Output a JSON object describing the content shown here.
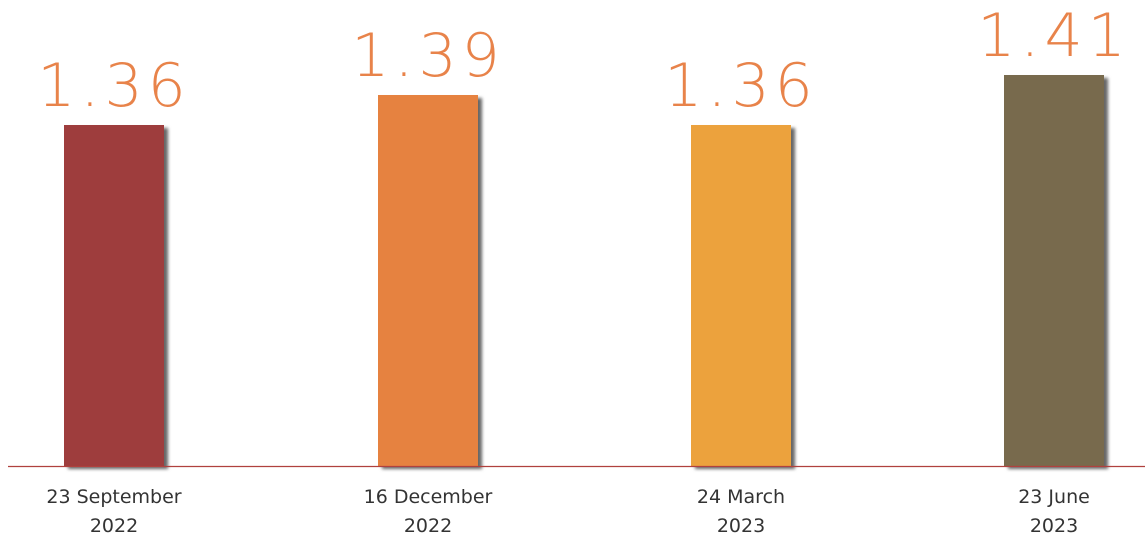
{
  "chart_data": {
    "type": "bar",
    "categories": [
      [
        "23 September",
        "2022"
      ],
      [
        "16 December",
        "2022"
      ],
      [
        "24 March",
        "2023"
      ],
      [
        "23 June",
        "2023"
      ]
    ],
    "values": [
      1.36,
      1.39,
      1.36,
      1.41
    ],
    "data_labels": [
      "1.36",
      "1.39",
      "1.36",
      "1.41"
    ],
    "bar_colors": [
      "#9e3c3c",
      "#e68240",
      "#eca23d",
      "#786a4e"
    ],
    "label_color": "#e8834a",
    "axis_color": "#b0413e",
    "title": "",
    "xlabel": "",
    "ylabel": "",
    "grid": false,
    "legend": "none"
  }
}
